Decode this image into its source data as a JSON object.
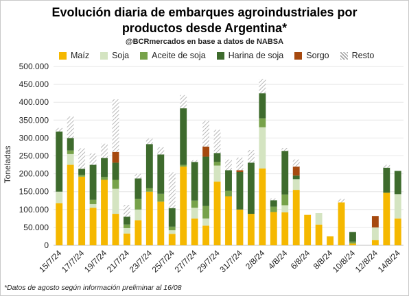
{
  "title_line1": "Evolución diaria de embarques agroindustriales por",
  "title_line2": "productos desde Argentina*",
  "subtitle": "@BCRmercados en base a datos de NABSA",
  "ylabel": "Toneladas",
  "footnote": "*Datos de agosto según información preliminar al 16/08",
  "colors": {
    "Maíz": "#f5b800",
    "Soja": "#d4e4c1",
    "Aceite de soja": "#77a24a",
    "Harina de soja": "#3e6b2d",
    "Sorgo": "#a6490f",
    "Resto": "hatch"
  },
  "chart_data": {
    "type": "bar",
    "stacked": true,
    "ylim": [
      0,
      500000
    ],
    "yticks": [
      0,
      50000,
      100000,
      150000,
      200000,
      250000,
      300000,
      350000,
      400000,
      450000,
      500000
    ],
    "ytick_labels": [
      "0",
      "50.000",
      "100.000",
      "150.000",
      "200.000",
      "250.000",
      "300.000",
      "350.000",
      "400.000",
      "450.000",
      "500.000"
    ],
    "categories": [
      "15/7/24",
      "16/7/24",
      "17/7/24",
      "18/7/24",
      "19/7/24",
      "20/7/24",
      "21/7/24",
      "22/7/24",
      "23/7/24",
      "24/7/24",
      "25/7/24",
      "26/7/24",
      "27/7/24",
      "28/7/24",
      "29/7/24",
      "30/7/24",
      "31/7/24",
      "1/8/24",
      "2/8/24",
      "3/8/24",
      "4/8/24",
      "5/8/24",
      "6/8/24",
      "7/8/24",
      "8/8/24",
      "9/8/24",
      "10/8/24",
      "11/8/24",
      "12/8/24",
      "13/8/24",
      "14/8/24"
    ],
    "xtick_labels": [
      "15/7/24",
      "",
      "17/7/24",
      "",
      "19/7/24",
      "",
      "21/7/24",
      "",
      "23/7/24",
      "",
      "25/7/24",
      "",
      "27/7/24",
      "",
      "29/7/24",
      "",
      "31/7/24",
      "",
      "2/8/24",
      "",
      "4/8/24",
      "",
      "6/8/24",
      "",
      "8/8/24",
      "",
      "10/8/24",
      "",
      "12/8/24",
      "",
      "14/8/24"
    ],
    "legend_position": "top",
    "series": [
      {
        "name": "Maíz",
        "values": [
          118000,
          225000,
          192000,
          105000,
          183000,
          88000,
          33000,
          70000,
          150000,
          122000,
          32000,
          220000,
          75000,
          55000,
          178000,
          137000,
          100000,
          88000,
          215000,
          93000,
          92000,
          155000,
          85000,
          58000,
          25000,
          120000,
          5000,
          0,
          15000,
          147000,
          75000
        ]
      },
      {
        "name": "Soja",
        "values": [
          32000,
          30000,
          0,
          10000,
          0,
          70000,
          15000,
          30000,
          0,
          0,
          10000,
          0,
          30000,
          20000,
          45000,
          0,
          0,
          0,
          115000,
          0,
          20000,
          30000,
          0,
          32000,
          0,
          0,
          0,
          0,
          35000,
          0,
          68000
        ]
      },
      {
        "name": "Aceite de soja",
        "values": [
          0,
          10000,
          5000,
          12000,
          8000,
          25000,
          10000,
          30000,
          10000,
          22000,
          10000,
          5000,
          20000,
          35000,
          10000,
          15000,
          0,
          0,
          25000,
          15000,
          30000,
          0,
          0,
          0,
          0,
          0,
          5000,
          0,
          0,
          0,
          0
        ]
      },
      {
        "name": "Harina de soja",
        "values": [
          168000,
          35000,
          17000,
          98000,
          53000,
          48000,
          22000,
          57000,
          123000,
          110000,
          52000,
          158000,
          108000,
          138000,
          25000,
          58000,
          105000,
          143000,
          70000,
          18000,
          122000,
          10000,
          0,
          0,
          0,
          0,
          27000,
          0,
          0,
          70000,
          65000
        ]
      },
      {
        "name": "Sorgo",
        "values": [
          0,
          0,
          0,
          0,
          0,
          30000,
          0,
          0,
          0,
          0,
          0,
          0,
          0,
          28000,
          0,
          0,
          5000,
          0,
          0,
          0,
          0,
          25000,
          0,
          0,
          0,
          0,
          0,
          0,
          32000,
          0,
          0
        ]
      },
      {
        "name": "Resto",
        "values": [
          10000,
          60000,
          57000,
          32000,
          40000,
          147000,
          33000,
          13000,
          15000,
          20000,
          100000,
          37000,
          5000,
          72000,
          65000,
          30000,
          35000,
          35000,
          40000,
          5000,
          8000,
          20000,
          0,
          0,
          0,
          10000,
          0,
          0,
          0,
          8000,
          0
        ]
      }
    ]
  }
}
